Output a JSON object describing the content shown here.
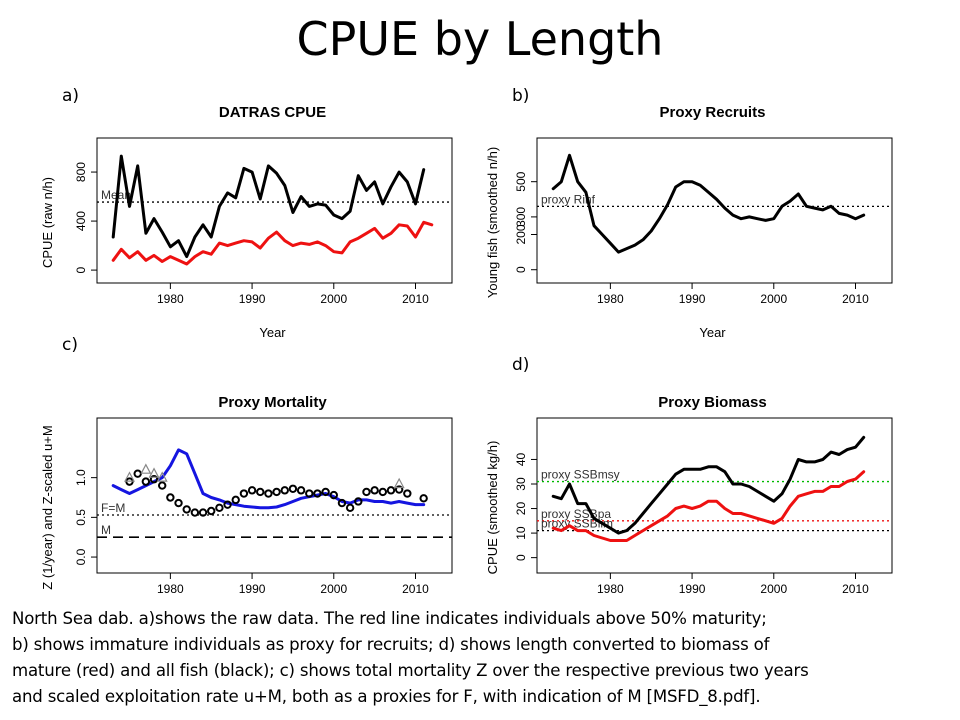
{
  "slide": {
    "title": "CPUE by Length"
  },
  "caption": {
    "lines": [
      "North Sea dab. a)shows the raw data. The red line indicates individuals above 50% maturity;",
      "b) shows immature individuals as proxy for recruits; d) shows length converted to biomass of",
      "mature (red) and all fish (black); c) shows total mortality Z over the respective previous two years",
      "and scaled exploitation rate u+M, both as a proxies for F, with indication of M [MSFD_8.pdf]."
    ]
  },
  "chart_data": [
    {
      "letter": "a)",
      "type": "line",
      "title": "DATRAS CPUE",
      "xlabel": "Year",
      "ylabel": "CPUE (raw n/h)",
      "xlim": [
        1972,
        2013
      ],
      "ylim": [
        -40,
        980
      ],
      "xticks": [
        1980,
        1990,
        2000,
        2010
      ],
      "yticks": [
        0,
        400,
        800
      ],
      "hlines": [
        {
          "y": 555,
          "label": "Mean",
          "style": "dotted",
          "color": "#000000"
        }
      ],
      "series": [
        {
          "color": "#000000",
          "x": [
            1973,
            1974,
            1975,
            1976,
            1977,
            1978,
            1979,
            1980,
            1981,
            1982,
            1983,
            1984,
            1985,
            1986,
            1987,
            1988,
            1989,
            1990,
            1991,
            1992,
            1993,
            1994,
            1995,
            1996,
            1997,
            1998,
            1999,
            2000,
            2001,
            2002,
            2003,
            2004,
            2005,
            2006,
            2007,
            2008,
            2009,
            2010,
            2011
          ],
          "values": [
            270,
            930,
            520,
            850,
            300,
            420,
            310,
            190,
            240,
            110,
            270,
            370,
            270,
            520,
            630,
            590,
            830,
            800,
            580,
            850,
            790,
            690,
            470,
            600,
            520,
            540,
            530,
            450,
            420,
            480,
            770,
            650,
            720,
            540,
            680,
            800,
            720,
            540,
            820
          ]
        },
        {
          "color": "#ee1111",
          "x": [
            1973,
            1974,
            1975,
            1976,
            1977,
            1978,
            1979,
            1980,
            1981,
            1982,
            1983,
            1984,
            1985,
            1986,
            1987,
            1988,
            1989,
            1990,
            1991,
            1992,
            1993,
            1994,
            1995,
            1996,
            1997,
            1998,
            1999,
            2000,
            2001,
            2002,
            2003,
            2004,
            2005,
            2006,
            2007,
            2008,
            2009,
            2010,
            2011,
            2012
          ],
          "values": [
            80,
            170,
            100,
            150,
            80,
            120,
            70,
            110,
            80,
            50,
            110,
            150,
            130,
            220,
            200,
            220,
            240,
            230,
            180,
            260,
            310,
            240,
            200,
            220,
            210,
            230,
            200,
            150,
            140,
            230,
            260,
            300,
            340,
            260,
            300,
            370,
            360,
            270,
            390,
            370
          ]
        }
      ]
    },
    {
      "letter": "b)",
      "type": "line",
      "title": "Proxy Recruits",
      "xlabel": "Year",
      "ylabel": "Young fish (smoothed n/h)",
      "xlim": [
        1972,
        2013
      ],
      "ylim": [
        -30,
        680
      ],
      "xticks": [
        1980,
        1990,
        2000,
        2010
      ],
      "yticks": [
        0,
        200,
        300,
        500
      ],
      "hlines": [
        {
          "y": 360,
          "label": "proxy Rinf",
          "style": "dotted",
          "color": "#000000"
        }
      ],
      "series": [
        {
          "color": "#000000",
          "x": [
            1973,
            1974,
            1975,
            1976,
            1977,
            1978,
            1979,
            1980,
            1981,
            1982,
            1983,
            1984,
            1985,
            1986,
            1987,
            1988,
            1989,
            1990,
            1991,
            1992,
            1993,
            1994,
            1995,
            1996,
            1997,
            1998,
            1999,
            2000,
            2001,
            2002,
            2003,
            2004,
            2005,
            2006,
            2007,
            2008,
            2009,
            2010,
            2011
          ],
          "values": [
            460,
            500,
            650,
            500,
            440,
            250,
            200,
            150,
            100,
            120,
            140,
            170,
            220,
            290,
            370,
            470,
            500,
            500,
            480,
            440,
            400,
            350,
            310,
            290,
            300,
            290,
            280,
            290,
            360,
            390,
            430,
            360,
            350,
            340,
            360,
            320,
            310,
            290,
            310
          ]
        }
      ]
    },
    {
      "letter": "c)",
      "type": "line",
      "title": "Proxy Mortality",
      "xlabel": "",
      "ylabel": "Z (1/year) and Z-scaled u+M",
      "xlim": [
        1972,
        2013
      ],
      "ylim": [
        -0.1,
        1.6
      ],
      "xticks": [
        1980,
        1990,
        2000,
        2010
      ],
      "yticks": [
        0.0,
        0.5,
        1.0
      ],
      "ytick_labels": [
        "0.0",
        "0.5",
        "1.0"
      ],
      "hlines": [
        {
          "y": 0.53,
          "label": "F=M",
          "style": "dotted",
          "color": "#000000"
        },
        {
          "y": 0.25,
          "label": "M",
          "style": "dashed",
          "color": "#000000"
        }
      ],
      "series": [
        {
          "color": "#1515e0",
          "x": [
            1973,
            1974,
            1975,
            1976,
            1977,
            1978,
            1979,
            1980,
            1981,
            1982,
            1983,
            1984,
            1985,
            1986,
            1987,
            1988,
            1989,
            1990,
            1991,
            1992,
            1993,
            1994,
            1995,
            1996,
            1997,
            1998,
            1999,
            2000,
            2001,
            2002,
            2003,
            2004,
            2005,
            2006,
            2007,
            2008,
            2009,
            2010,
            2011
          ],
          "values": [
            0.9,
            0.85,
            0.8,
            0.85,
            0.9,
            0.95,
            1.0,
            1.15,
            1.35,
            1.3,
            1.05,
            0.8,
            0.75,
            0.72,
            0.68,
            0.66,
            0.64,
            0.63,
            0.62,
            0.62,
            0.63,
            0.66,
            0.7,
            0.74,
            0.76,
            0.78,
            0.8,
            0.76,
            0.7,
            0.68,
            0.72,
            0.72,
            0.7,
            0.7,
            0.68,
            0.7,
            0.68,
            0.66,
            0.66
          ]
        },
        {
          "color": "#000000",
          "marker": "circle",
          "x": [
            1975,
            1976,
            1977,
            1978,
            1979,
            1980,
            1981,
            1982,
            1983,
            1984,
            1985,
            1986,
            1987,
            1988,
            1989,
            1990,
            1991,
            1992,
            1993,
            1994,
            1995,
            1996,
            1997,
            1998,
            1999,
            2000,
            2001,
            2002,
            2003,
            2004,
            2005,
            2006,
            2007,
            2008,
            2009,
            2011
          ],
          "values": [
            0.95,
            1.05,
            0.95,
            0.98,
            0.9,
            0.75,
            0.68,
            0.6,
            0.56,
            0.56,
            0.58,
            0.62,
            0.66,
            0.72,
            0.8,
            0.84,
            0.82,
            0.8,
            0.82,
            0.84,
            0.86,
            0.84,
            0.8,
            0.8,
            0.82,
            0.78,
            0.68,
            0.62,
            0.7,
            0.82,
            0.84,
            0.82,
            0.84,
            0.85,
            0.8,
            0.74
          ]
        },
        {
          "color": "#888888",
          "marker": "triangle",
          "x": [
            1975,
            1977,
            1978,
            1979,
            2008
          ],
          "values": [
            1.0,
            1.1,
            1.05,
            1.0,
            0.92
          ]
        }
      ]
    },
    {
      "letter": "d)",
      "type": "line",
      "title": "Proxy Biomass",
      "xlabel": "",
      "ylabel": "CPUE (smoothed kg/h)",
      "xlim": [
        1972,
        2013
      ],
      "ylim": [
        -3,
        52
      ],
      "xticks": [
        1980,
        1990,
        2000,
        2010
      ],
      "yticks": [
        0,
        10,
        20,
        30,
        40
      ],
      "hlines": [
        {
          "y": 31,
          "label": "proxy SSBmsy",
          "style": "dotted",
          "color": "#00bb00"
        },
        {
          "y": 15,
          "label": "proxy SSBpa",
          "style": "dotted",
          "color": "#ee1111"
        },
        {
          "y": 11,
          "label": "proxy SSBlim",
          "style": "dotted",
          "color": "#000000"
        }
      ],
      "series": [
        {
          "color": "#000000",
          "x": [
            1973,
            1974,
            1975,
            1976,
            1977,
            1978,
            1979,
            1980,
            1981,
            1982,
            1983,
            1984,
            1985,
            1986,
            1987,
            1988,
            1989,
            1990,
            1991,
            1992,
            1993,
            1994,
            1995,
            1996,
            1997,
            1998,
            1999,
            2000,
            2001,
            2002,
            2003,
            2004,
            2005,
            2006,
            2007,
            2008,
            2009,
            2010,
            2011
          ],
          "values": [
            25,
            24,
            30,
            22,
            22,
            16,
            14,
            12,
            10,
            11,
            14,
            18,
            22,
            26,
            30,
            34,
            36,
            36,
            36,
            37,
            37,
            35,
            30,
            30,
            29,
            27,
            25,
            23,
            26,
            32,
            40,
            39,
            39,
            40,
            43,
            42,
            44,
            45,
            49
          ]
        },
        {
          "color": "#ee1111",
          "x": [
            1973,
            1974,
            1975,
            1976,
            1977,
            1978,
            1979,
            1980,
            1981,
            1982,
            1983,
            1984,
            1985,
            1986,
            1987,
            1988,
            1989,
            1990,
            1991,
            1992,
            1993,
            1994,
            1995,
            1996,
            1997,
            1998,
            1999,
            2000,
            2001,
            2002,
            2003,
            2004,
            2005,
            2006,
            2007,
            2008,
            2009,
            2010,
            2011
          ],
          "values": [
            12,
            11,
            13,
            11,
            11,
            9,
            8,
            7,
            7,
            7,
            9,
            11,
            13,
            15,
            17,
            20,
            21,
            20,
            21,
            23,
            23,
            20,
            18,
            18,
            17,
            16,
            15,
            14,
            16,
            21,
            25,
            26,
            27,
            27,
            29,
            29,
            31,
            32,
            35
          ]
        }
      ]
    }
  ]
}
